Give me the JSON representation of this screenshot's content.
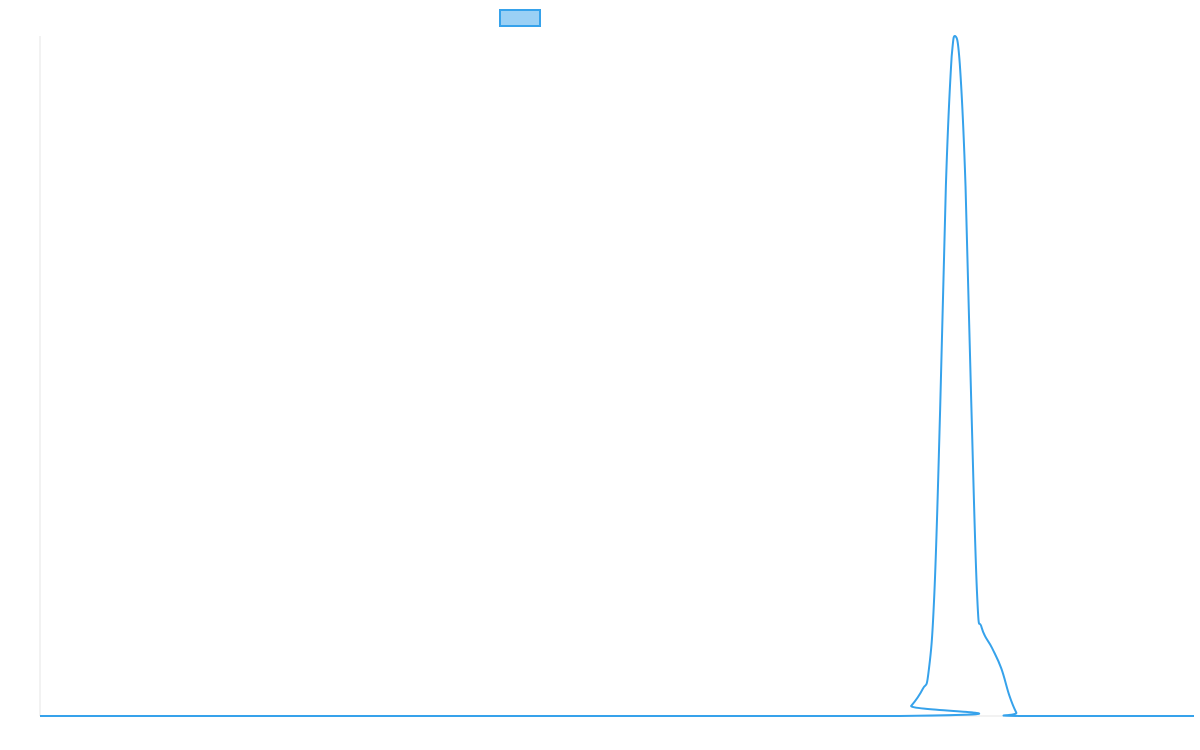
{
  "chart_data": {
    "type": "line",
    "title": "",
    "xlabel": "",
    "ylabel": "",
    "grid": false,
    "legend": {
      "position": "top-center",
      "show_label": false
    },
    "colors": {
      "series_line": "#36a2eb",
      "legend_fill": "#9ad0f5",
      "axis": "#e5e5e5"
    },
    "xlim": [
      0,
      100
    ],
    "ylim": [
      0,
      1
    ],
    "series": [
      {
        "points": [
          {
            "x": 0,
            "y": 0
          },
          {
            "x": 74.5,
            "y": 0
          },
          {
            "x": 75.5,
            "y": 0.015
          },
          {
            "x": 76.5,
            "y": 0.04
          },
          {
            "x": 77.0,
            "y": 0.065
          },
          {
            "x": 77.5,
            "y": 0.18
          },
          {
            "x": 78.0,
            "y": 0.45
          },
          {
            "x": 78.5,
            "y": 0.78
          },
          {
            "x": 79.0,
            "y": 0.97
          },
          {
            "x": 79.3,
            "y": 1.0
          },
          {
            "x": 79.7,
            "y": 0.96
          },
          {
            "x": 80.2,
            "y": 0.78
          },
          {
            "x": 80.7,
            "y": 0.46
          },
          {
            "x": 81.2,
            "y": 0.18
          },
          {
            "x": 81.6,
            "y": 0.13
          },
          {
            "x": 82.5,
            "y": 0.1
          },
          {
            "x": 83.3,
            "y": 0.07
          },
          {
            "x": 84.0,
            "y": 0.03
          },
          {
            "x": 84.6,
            "y": 0.005
          },
          {
            "x": 84.9,
            "y": 0
          },
          {
            "x": 100,
            "y": 0
          }
        ]
      }
    ]
  }
}
